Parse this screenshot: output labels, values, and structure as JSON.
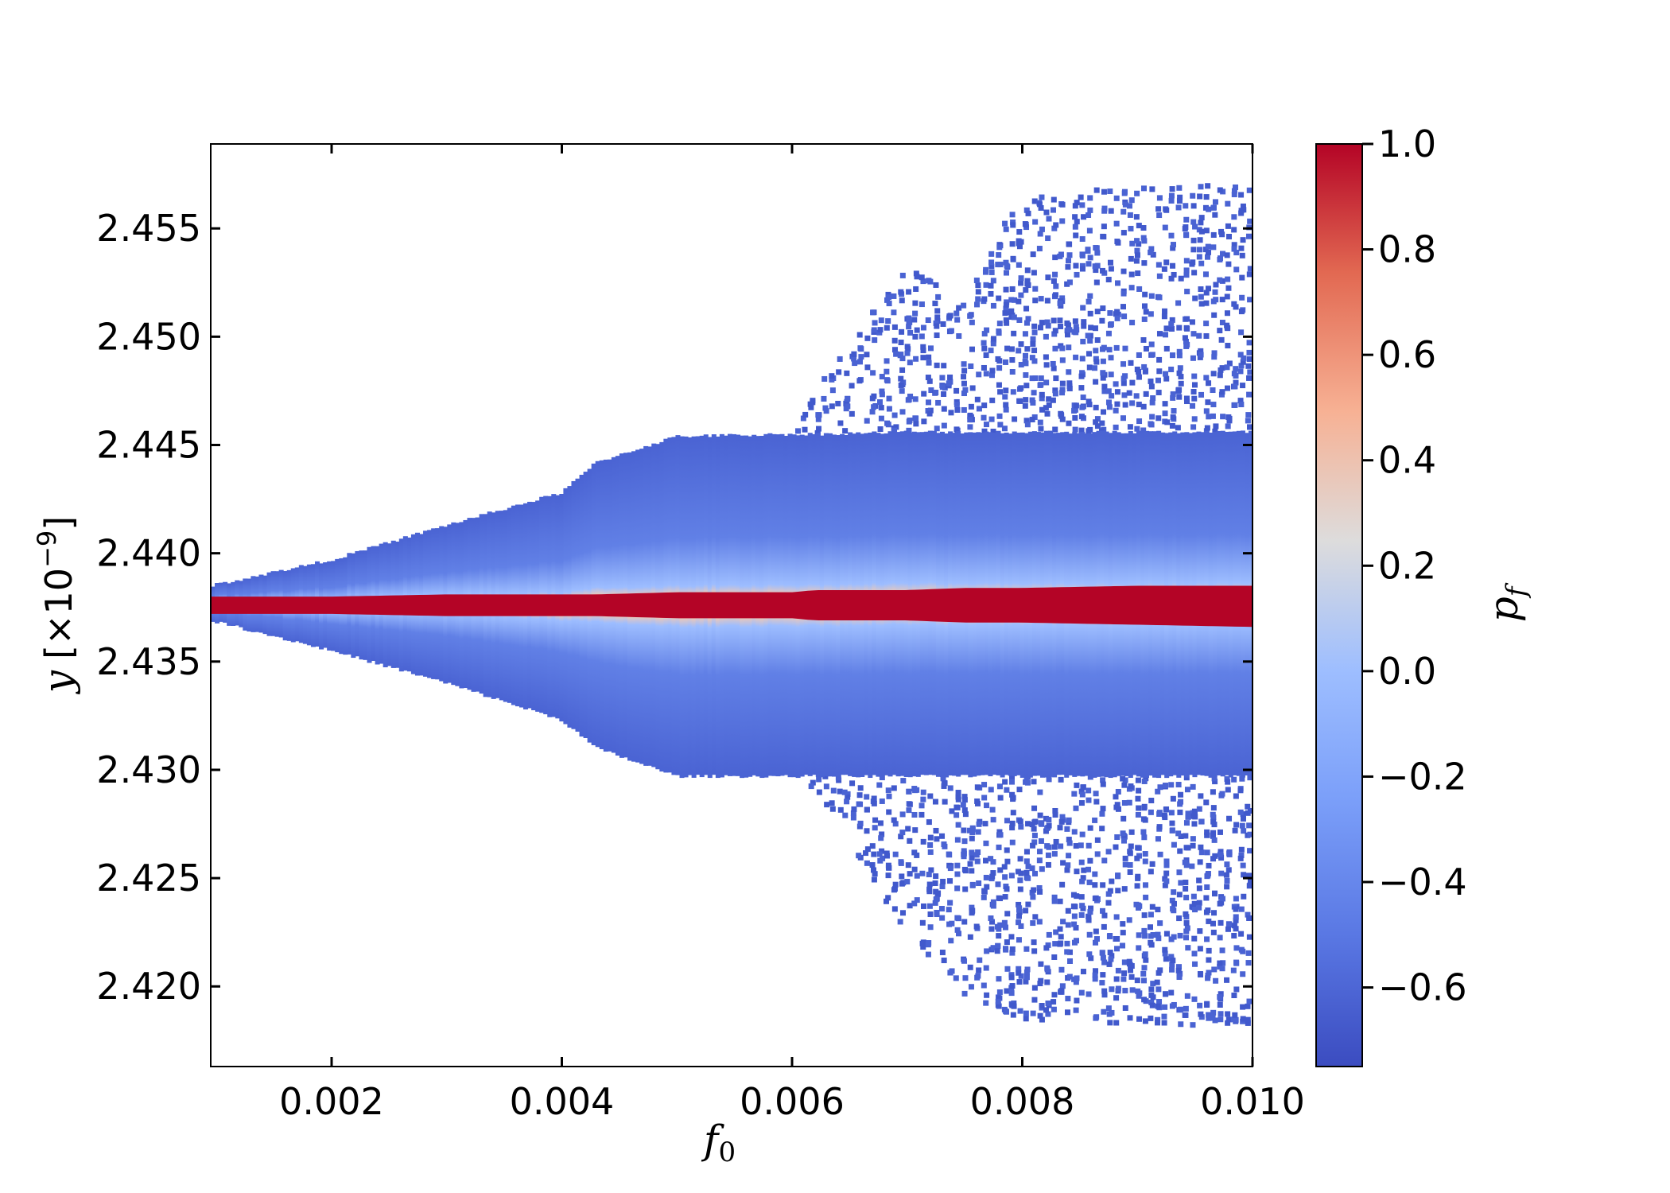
{
  "chart_data": {
    "type": "scatter",
    "title": "",
    "xlabel": "f",
    "xlabel_subscript": "0",
    "ylabel": "y",
    "ylabel_units": "[×10",
    "ylabel_exponent": "−9",
    "ylabel_units_close": "]",
    "xlim": [
      0.00095,
      0.01
    ],
    "ylim": [
      2.4163,
      2.4589
    ],
    "x_ticks": [
      0.002,
      0.004,
      0.006,
      0.008,
      0.01
    ],
    "x_tick_labels": [
      "0.002",
      "0.004",
      "0.006",
      "0.008",
      "0.010"
    ],
    "y_ticks": [
      2.42,
      2.425,
      2.43,
      2.435,
      2.44,
      2.445,
      2.45,
      2.455
    ],
    "y_tick_labels": [
      "2.420",
      "2.425",
      "2.430",
      "2.435",
      "2.440",
      "2.445",
      "2.450",
      "2.455"
    ],
    "grid": false,
    "colormap": "coolwarm",
    "colorbar": {
      "label": "p",
      "label_subscript": "f",
      "range": [
        -0.75,
        1.0
      ],
      "ticks": [
        -0.6,
        -0.4,
        -0.2,
        0.0,
        0.2,
        0.4,
        0.6,
        0.8,
        1.0
      ],
      "tick_labels": [
        "−0.6",
        "−0.4",
        "−0.2",
        "0.0",
        "0.2",
        "0.4",
        "0.6",
        "0.8",
        "1.0"
      ]
    },
    "series": [
      {
        "description_of_envelope": "",
        "x": [
          0.00095,
          0.002,
          0.003,
          0.004,
          0.0043,
          0.005,
          0.006,
          0.0062,
          0.007,
          0.0075,
          0.008,
          0.009,
          0.01
        ],
        "y_center": [
          2.4376,
          2.4376,
          2.4376,
          2.4376,
          2.4376,
          2.4376,
          2.4376,
          2.4376,
          2.4376,
          2.4376,
          2.4376,
          2.4376,
          2.4376
        ],
        "y_core_upper": [
          2.438,
          2.438,
          2.4381,
          2.4381,
          2.4381,
          2.4382,
          2.4382,
          2.4383,
          2.4383,
          2.4384,
          2.4384,
          2.4385,
          2.4385
        ],
        "y_core_lower": [
          2.4372,
          2.4372,
          2.4371,
          2.4371,
          2.4371,
          2.437,
          2.437,
          2.4369,
          2.4369,
          2.4368,
          2.4368,
          2.4367,
          2.4366
        ],
        "y_dense_upper": [
          2.4385,
          2.4397,
          2.4413,
          2.4428,
          2.4442,
          2.4454,
          2.4455,
          2.4455,
          2.4456,
          2.4456,
          2.4456,
          2.4456,
          2.4456
        ],
        "y_dense_lower": [
          2.4369,
          2.4355,
          2.434,
          2.4323,
          2.431,
          2.4297,
          2.4297,
          2.4297,
          2.4297,
          2.4297,
          2.4297,
          2.4297,
          2.4297
        ],
        "y_sparse_upper": [
          2.4385,
          2.4397,
          2.4413,
          2.4428,
          2.4442,
          2.4454,
          2.4455,
          2.4475,
          2.4535,
          2.4515,
          2.4567,
          2.457,
          2.457
        ],
        "y_sparse_lower": [
          2.4369,
          2.4355,
          2.434,
          2.4323,
          2.431,
          2.4297,
          2.4297,
          2.429,
          2.4225,
          2.4195,
          2.4185,
          2.4182,
          2.4182
        ]
      }
    ]
  }
}
